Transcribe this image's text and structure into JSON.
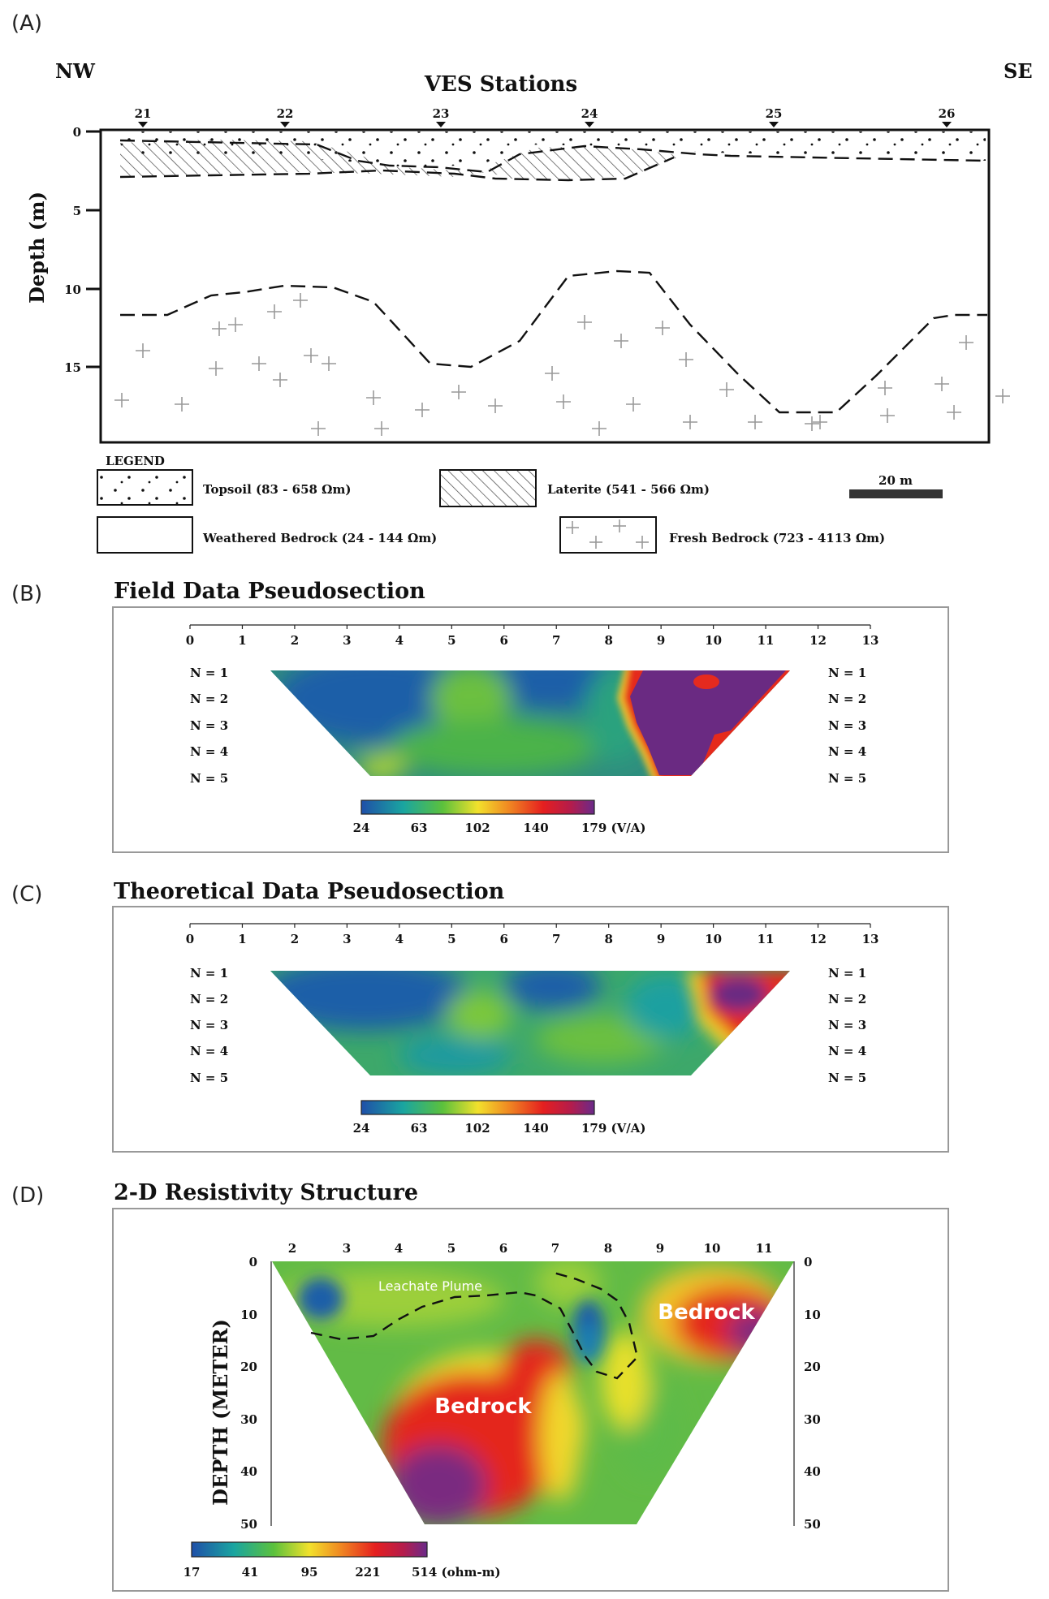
{
  "panel_a": {
    "letter": "(A)",
    "nw": "NW",
    "se": "SE",
    "title": "VES Stations",
    "stations": [
      "21",
      "22",
      "23",
      "24",
      "25",
      "26"
    ],
    "ylabel": "Depth (m)",
    "depth_ticks": [
      "0",
      "5",
      "10",
      "15"
    ],
    "legend": {
      "title": "LEGEND",
      "topsoil": "Topsoil (83 - 658  Ωm)",
      "laterite": "Laterite (541 - 566  Ωm)",
      "weathered": "Weathered Bedrock (24 - 144 Ωm)",
      "fresh": "Fresh Bedrock (723 - 4113  Ωm)",
      "scale": "20 m"
    }
  },
  "panel_b": {
    "letter": "(B)",
    "title": "Field Data Pseudosection",
    "ticks": [
      "0",
      "1",
      "2",
      "3",
      "4",
      "5",
      "6",
      "7",
      "8",
      "9",
      "10",
      "11",
      "12",
      "13"
    ],
    "levels": [
      "N = 1",
      "N = 2",
      "N = 3",
      "N = 4",
      "N = 5"
    ],
    "colorbar": [
      "24",
      "63",
      "102",
      "140",
      "179 (V/A)"
    ]
  },
  "panel_c": {
    "letter": "(C)",
    "title": "Theoretical Data Pseudosection",
    "ticks": [
      "0",
      "1",
      "2",
      "3",
      "4",
      "5",
      "6",
      "7",
      "8",
      "9",
      "10",
      "11",
      "12",
      "13"
    ],
    "levels": [
      "N = 1",
      "N = 2",
      "N = 3",
      "N = 4",
      "N = 5"
    ],
    "colorbar": [
      "24",
      "63",
      "102",
      "140",
      "179 (V/A)"
    ]
  },
  "panel_d": {
    "letter": "(D)",
    "title": "2-D Resistivity Structure",
    "ticks": [
      "2",
      "3",
      "4",
      "5",
      "6",
      "7",
      "8",
      "9",
      "10",
      "11"
    ],
    "depth_ticks": [
      "0",
      "10",
      "20",
      "30",
      "40",
      "50"
    ],
    "ylabel": "DEPTH (METER)",
    "annot_plume": "Leachate Plume",
    "annot_bedrock_left": "Bedrock",
    "annot_bedrock_right": "Bedrock",
    "colorbar": [
      "17",
      "41",
      "95",
      "221",
      "514 (ohm-m)"
    ]
  }
}
